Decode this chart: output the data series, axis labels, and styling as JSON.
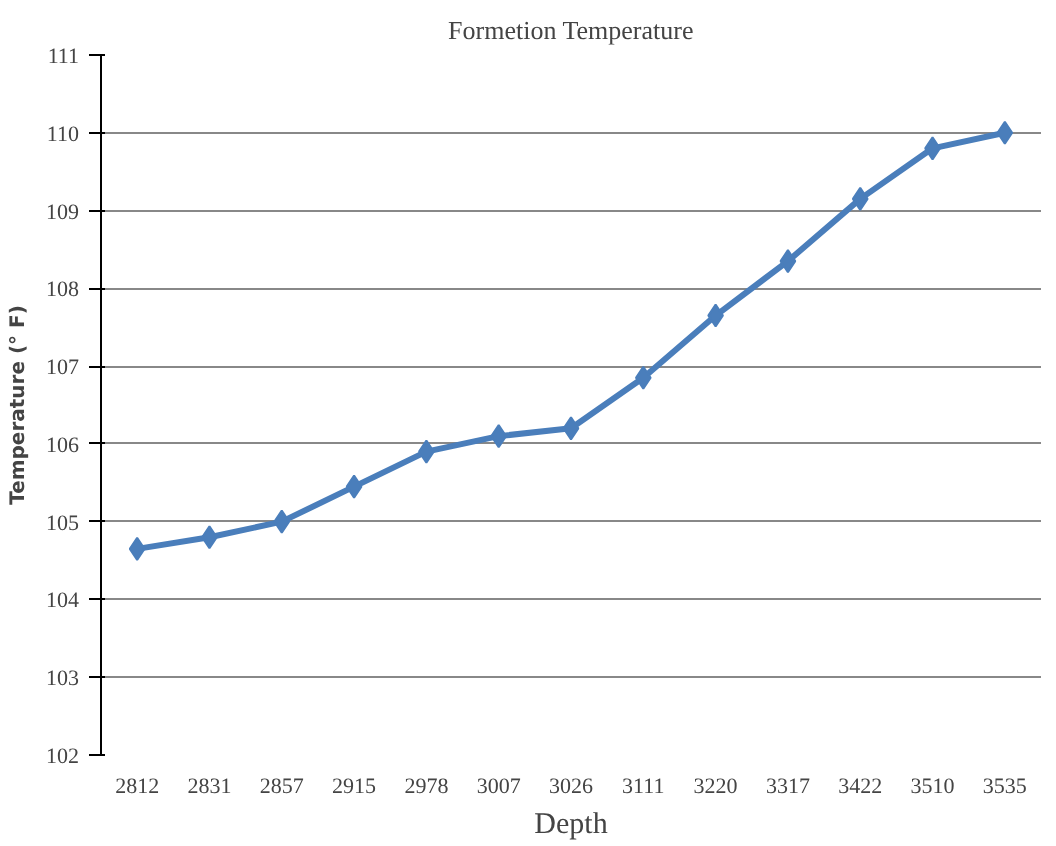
{
  "chart_data": {
    "type": "line",
    "title": "Formetion Temperature",
    "xlabel": "Depth",
    "ylabel": "Temperature (° F)",
    "categories": [
      "2812",
      "2831",
      "2857",
      "2915",
      "2978",
      "3007",
      "3026",
      "3111",
      "3220",
      "3317",
      "3422",
      "3510",
      "3535"
    ],
    "series": [
      {
        "color": "#4a7ebb",
        "values": [
          104.65,
          104.8,
          105.0,
          105.45,
          105.9,
          106.1,
          106.2,
          106.85,
          107.65,
          108.35,
          109.15,
          109.8,
          110.0
        ]
      }
    ],
    "ylim": [
      102,
      111
    ],
    "yticks": [
      102,
      103,
      104,
      105,
      106,
      107,
      108,
      109,
      110,
      111
    ],
    "grid": "y",
    "marker": "diamond",
    "line_style": "solid"
  }
}
